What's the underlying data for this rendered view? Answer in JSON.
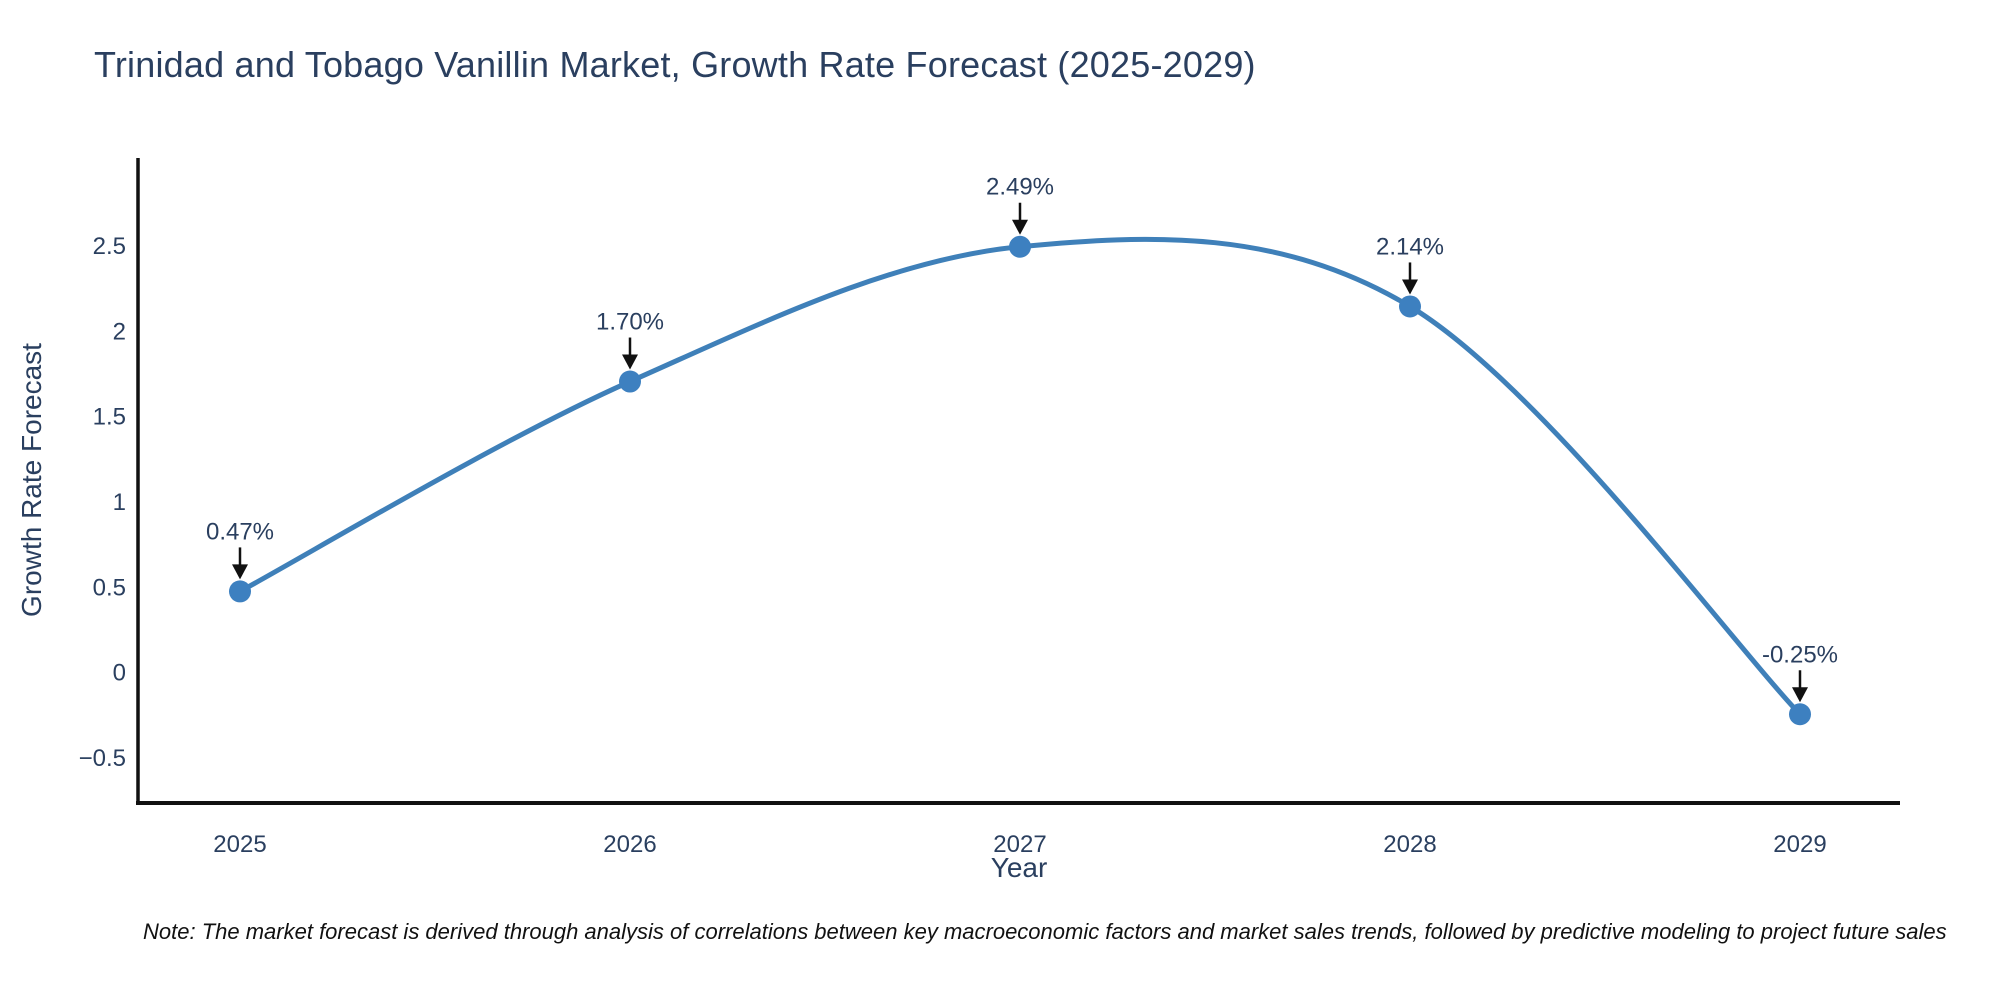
{
  "chart_data": {
    "type": "line",
    "line_shape": "spline",
    "grid": false,
    "legend": "none",
    "title": "Trinidad and Tobago Vanillin Market, Growth Rate Forecast (2025-2029)",
    "xlabel": "Year",
    "ylabel": "Growth Rate Forecast",
    "categories": [
      "2025",
      "2026",
      "2027",
      "2028",
      "2029"
    ],
    "series": [
      {
        "name": "Growth Rate Forecast",
        "values": [
          0.47,
          1.7,
          2.49,
          2.14,
          -0.25
        ]
      }
    ],
    "point_labels": [
      "0.47%",
      "1.70%",
      "2.49%",
      "2.14%",
      "-0.25%"
    ],
    "yticks": [
      2.5,
      2,
      1.5,
      1,
      0.5,
      0,
      -0.5
    ],
    "ylim": [
      -0.77,
      3.01
    ],
    "colors": {
      "line": "#3f80b9",
      "marker": "#3d80c0",
      "axis": "#111111",
      "text": "#2a3f5f",
      "annotation_arrow": "#111111",
      "note": "#111111",
      "background": "#ffffff"
    },
    "note": "Note: The market forecast is derived through analysis of correlations between key macroeconomic factors and market sales trends, followed by predictive modeling to project future sales"
  }
}
